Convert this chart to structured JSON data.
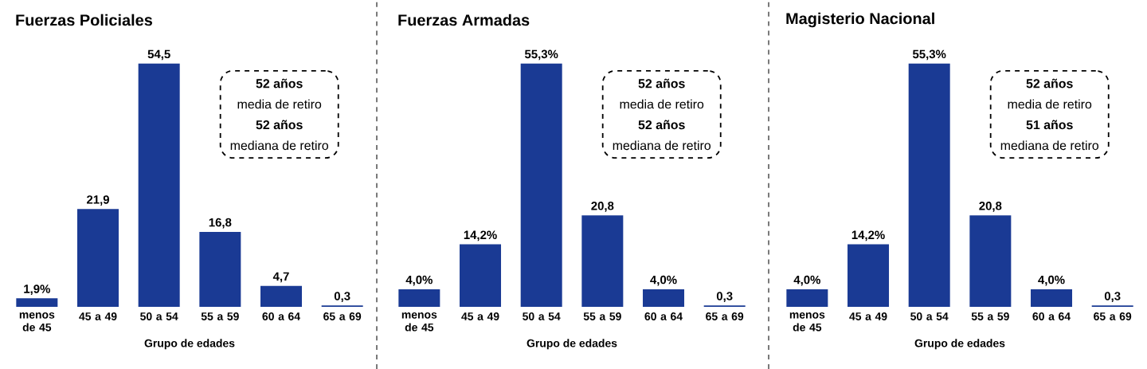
{
  "chart_data": [
    {
      "type": "bar",
      "title": "Fuerzas Policiales",
      "xlabel": "Grupo de edades",
      "categories": [
        "menos de 45",
        "45 a 49",
        "50 a 54",
        "55 a 59",
        "60 a 64",
        "65 a 69"
      ],
      "values": [
        1.9,
        21.9,
        54.5,
        16.8,
        4.7,
        0.3
      ],
      "value_labels": [
        "1,9%",
        "21,9",
        "54,5",
        "16,8",
        "4,7",
        "0,3"
      ],
      "color": "#1a3a94",
      "tick_labels": "x",
      "annotations": [
        "52 años",
        "media de retiro",
        "52 años",
        "mediana de retiro"
      ]
    },
    {
      "type": "bar",
      "title": "Fuerzas Armadas",
      "xlabel": "Grupo de edades",
      "categories": [
        "menos de 45",
        "45 a 49",
        "50 a 54",
        "55 a 59",
        "60 a 64",
        "65 a 69"
      ],
      "values": [
        4.0,
        14.2,
        55.3,
        20.8,
        4.0,
        0.3
      ],
      "value_labels": [
        "4,0%",
        "14,2%",
        "55,3%",
        "20,8",
        "4,0%",
        "0,3"
      ],
      "color": "#1a3a94",
      "tick_labels": "x",
      "annotations": [
        "52 años",
        "media de retiro",
        "52 años",
        "mediana de retiro"
      ]
    },
    {
      "type": "bar",
      "title": "Magisterio Nacional",
      "xlabel": "Grupo de edades",
      "categories": [
        "menos de 45",
        "45 a 49",
        "50 a 54",
        "55 a 59",
        "60 a 64",
        "65 a 69"
      ],
      "values": [
        4.0,
        14.2,
        55.3,
        20.8,
        4.0,
        0.3
      ],
      "value_labels": [
        "4,0%",
        "14,2%",
        "55,3%",
        "20,8",
        "4,0%",
        "0,3"
      ],
      "color": "#1a3a94",
      "tick_labels": "x",
      "annotations": [
        "52 años",
        "media de retiro",
        "51 años",
        "mediana de retiro"
      ]
    }
  ]
}
